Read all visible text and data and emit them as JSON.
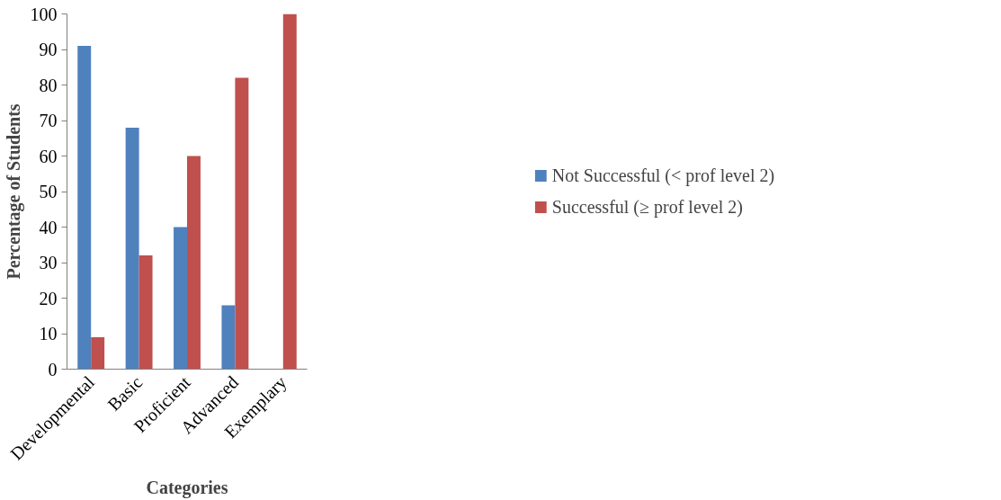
{
  "chart_data": {
    "type": "bar",
    "xlabel": "Categories",
    "ylabel": "Percentage of Students",
    "categories": [
      "Developmental",
      "Basic",
      "Proficient",
      "Advanced",
      "Exemplary"
    ],
    "series": [
      {
        "name": "Not Successful (< prof level 2)",
        "color": "#4f81bd",
        "values": [
          91,
          68,
          40,
          18,
          0
        ]
      },
      {
        "name": "Successful (≥ prof level 2)",
        "color": "#c0504d",
        "values": [
          9,
          32,
          60,
          82,
          100
        ]
      }
    ],
    "ylim": [
      0,
      100
    ],
    "yticks": [
      0,
      10,
      20,
      30,
      40,
      50,
      60,
      70,
      80,
      90,
      100
    ],
    "grid": false,
    "legend": "right"
  }
}
